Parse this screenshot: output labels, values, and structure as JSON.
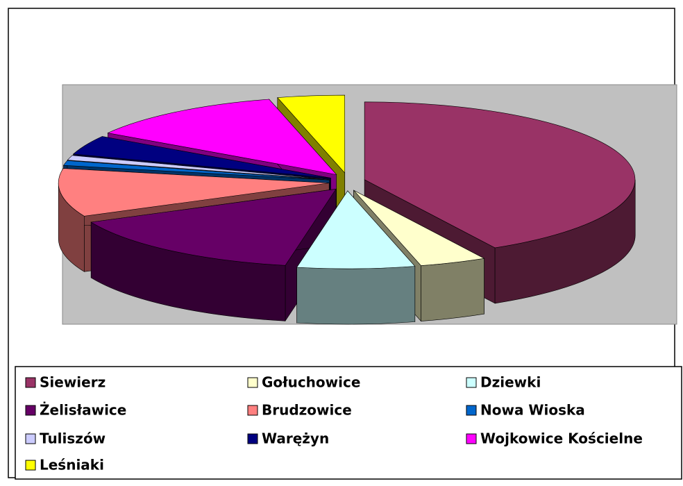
{
  "chart_data": {
    "type": "pie",
    "categories": [
      "Siewierz",
      "Gołuchowice",
      "Dziewki",
      "Żelisławice",
      "Brudzowice",
      "Nowa Wioska",
      "Tuliszów",
      "Warężyn",
      "Wojkowice Kościelne",
      "Leśniaki"
    ],
    "values": [
      42,
      4,
      7,
      15,
      10,
      1,
      1,
      4,
      12,
      4
    ],
    "colors": [
      "#993366",
      "#ffffcc",
      "#ccffff",
      "#660066",
      "#ff8080",
      "#0066cc",
      "#ccccff",
      "#000080",
      "#ff00ff",
      "#ffff00"
    ],
    "legend": "bottom"
  }
}
